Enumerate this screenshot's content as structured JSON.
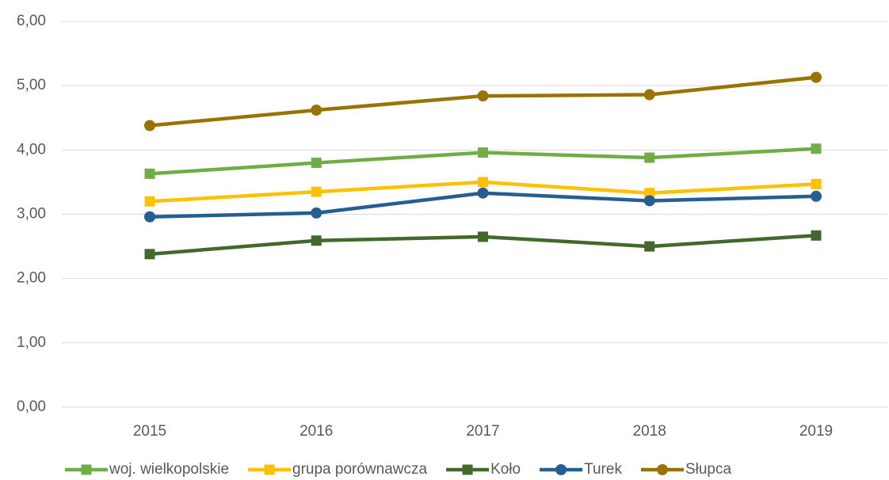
{
  "chart_data": {
    "type": "line",
    "categories": [
      "2015",
      "2016",
      "2017",
      "2018",
      "2019"
    ],
    "series": [
      {
        "name": "woj. wielkopolskie",
        "color": "#70ad47",
        "marker": "square",
        "values": [
          3.63,
          3.8,
          3.96,
          3.88,
          4.02
        ]
      },
      {
        "name": "grupa porównawcza",
        "color": "#ffc000",
        "marker": "square",
        "values": [
          3.2,
          3.35,
          3.5,
          3.33,
          3.47
        ]
      },
      {
        "name": "Koło",
        "color": "#43682b",
        "marker": "square",
        "values": [
          2.38,
          2.59,
          2.65,
          2.5,
          2.67
        ]
      },
      {
        "name": "Turek",
        "color": "#255e91",
        "marker": "circle",
        "values": [
          2.96,
          3.02,
          3.33,
          3.21,
          3.28
        ]
      },
      {
        "name": "Słupca",
        "color": "#997300",
        "marker": "circle",
        "values": [
          4.38,
          4.62,
          4.84,
          4.86,
          5.13
        ]
      }
    ],
    "ylim": [
      0,
      6
    ],
    "yticks": [
      {
        "value": 0,
        "label": "0,00"
      },
      {
        "value": 1,
        "label": "1,00"
      },
      {
        "value": 2,
        "label": "2,00"
      },
      {
        "value": 3,
        "label": "3,00"
      },
      {
        "value": 4,
        "label": "4,00"
      },
      {
        "value": 5,
        "label": "5,00"
      },
      {
        "value": 6,
        "label": "6,00"
      }
    ],
    "grid": true,
    "legend": "bottom"
  }
}
